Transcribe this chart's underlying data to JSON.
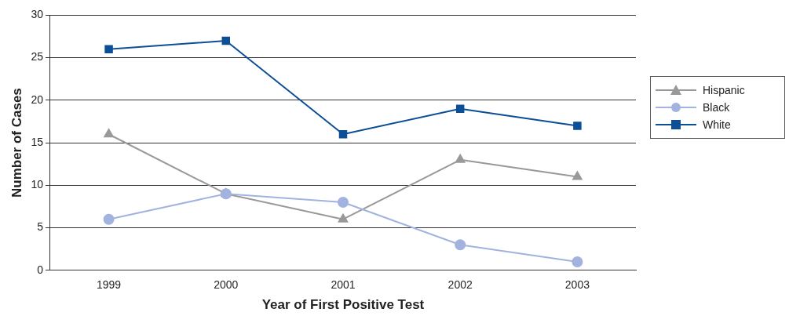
{
  "chart_data": {
    "type": "line",
    "xlabel": "Year of First Positive Test",
    "ylabel": "Number of Cases",
    "categories": [
      "1999",
      "2000",
      "2001",
      "2002",
      "2003"
    ],
    "series": [
      {
        "name": "Hispanic",
        "color": "#999999",
        "marker": "triangle",
        "values": [
          16,
          9,
          6,
          13,
          11
        ]
      },
      {
        "name": "Black",
        "color": "#a2b3df",
        "marker": "circle",
        "values": [
          6,
          9,
          8,
          3,
          1
        ]
      },
      {
        "name": "White",
        "color": "#0c4f97",
        "marker": "square",
        "values": [
          26,
          27,
          16,
          19,
          17
        ]
      }
    ],
    "ylim": [
      0,
      30
    ],
    "yticks": [
      0,
      5,
      10,
      15,
      20,
      25,
      30
    ],
    "grid": "y",
    "legend": "right",
    "line_style": "solid"
  }
}
